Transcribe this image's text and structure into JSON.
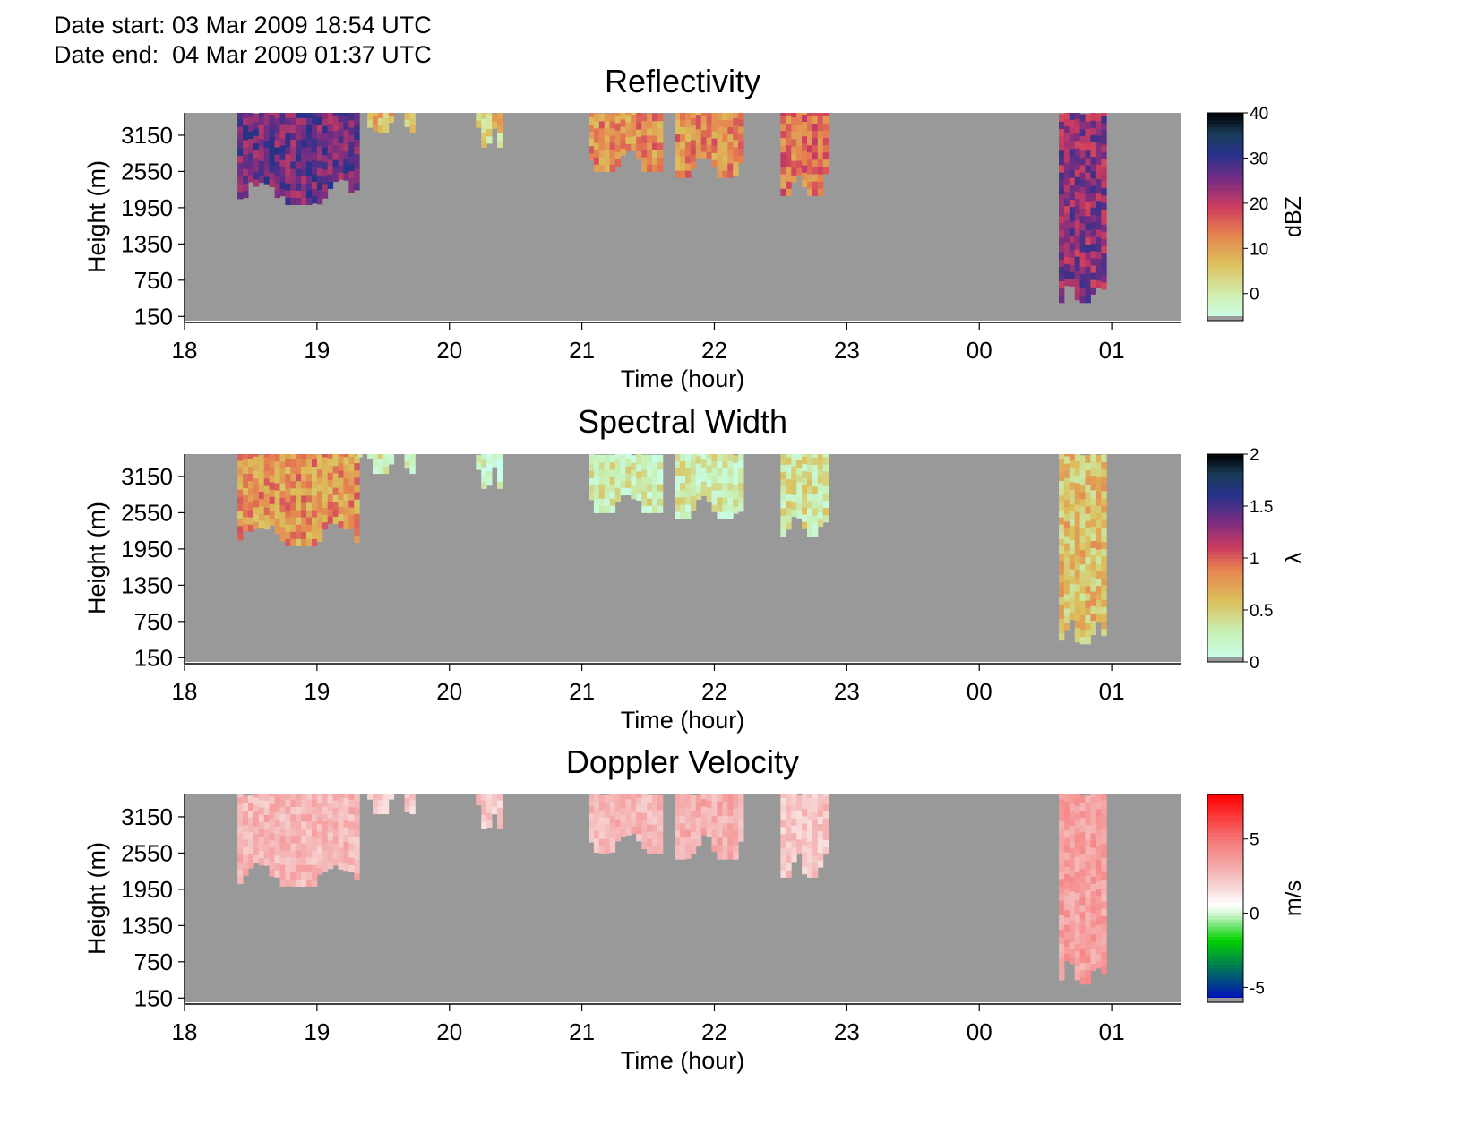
{
  "header": {
    "date_start": "Date start: 03 Mar 2009 18:54 UTC",
    "date_end": "Date end:  04 Mar 2009 01:37 UTC"
  },
  "colors": {
    "background": "#999999",
    "no_data": "#999999"
  },
  "chart_data": [
    {
      "type": "heatmap",
      "title": "Reflectivity",
      "xlabel": "Time (hour)",
      "ylabel": "Height (m)",
      "x_ticks": [
        "18",
        "19",
        "20",
        "21",
        "22",
        "23",
        "00",
        "01"
      ],
      "y_ticks": [
        "150",
        "750",
        "1350",
        "1950",
        "2550",
        "3150"
      ],
      "xlim_hours": [
        18.0,
        25.52
      ],
      "ylim_m": [
        80,
        3520
      ],
      "colorbar": {
        "label": "dBZ",
        "ticks": [
          "0",
          "10",
          "20",
          "30",
          "40"
        ],
        "range": [
          -6,
          40
        ],
        "colormap": "reflectivity"
      },
      "echo_regions": [
        {
          "t_start": 18.4,
          "t_end": 19.3,
          "z_bottom": 2000,
          "z_top": 3500,
          "intensity": 0.7
        },
        {
          "t_start": 19.3,
          "t_end": 19.7,
          "z_bottom": 3200,
          "z_top": 3500,
          "intensity": 0.3
        },
        {
          "t_start": 20.2,
          "t_end": 20.38,
          "z_bottom": 2950,
          "z_top": 3500,
          "intensity": 0.25
        },
        {
          "t_start": 21.05,
          "t_end": 21.6,
          "z_bottom": 2550,
          "z_top": 3500,
          "intensity": 0.4
        },
        {
          "t_start": 21.7,
          "t_end": 22.2,
          "z_bottom": 2450,
          "z_top": 3500,
          "intensity": 0.4
        },
        {
          "t_start": 22.5,
          "t_end": 22.85,
          "z_bottom": 2150,
          "z_top": 3500,
          "intensity": 0.45
        },
        {
          "t_start": 24.6,
          "t_end": 24.93,
          "z_bottom": 380,
          "z_top": 3500,
          "intensity": 0.65
        }
      ]
    },
    {
      "type": "heatmap",
      "title": "Spectral Width",
      "xlabel": "Time (hour)",
      "ylabel": "Height (m)",
      "x_ticks": [
        "18",
        "19",
        "20",
        "21",
        "22",
        "23",
        "00",
        "01"
      ],
      "y_ticks": [
        "150",
        "750",
        "1350",
        "1950",
        "2550",
        "3150"
      ],
      "xlim_hours": [
        18.0,
        25.52
      ],
      "ylim_m": [
        80,
        3520
      ],
      "colorbar": {
        "label": "λ",
        "ticks": [
          "0",
          "0.5",
          "1",
          "1.5",
          "2"
        ],
        "range": [
          0,
          2
        ],
        "colormap": "spectral_width"
      },
      "echo_regions": [
        {
          "t_start": 18.4,
          "t_end": 19.3,
          "z_bottom": 2000,
          "z_top": 3500,
          "intensity": 0.4
        },
        {
          "t_start": 19.3,
          "t_end": 19.7,
          "z_bottom": 3200,
          "z_top": 3500,
          "intensity": 0.15
        },
        {
          "t_start": 20.2,
          "t_end": 20.38,
          "z_bottom": 2950,
          "z_top": 3500,
          "intensity": 0.1
        },
        {
          "t_start": 21.05,
          "t_end": 21.6,
          "z_bottom": 2550,
          "z_top": 3500,
          "intensity": 0.15
        },
        {
          "t_start": 21.7,
          "t_end": 22.2,
          "z_bottom": 2450,
          "z_top": 3500,
          "intensity": 0.15
        },
        {
          "t_start": 22.5,
          "t_end": 22.85,
          "z_bottom": 2150,
          "z_top": 3500,
          "intensity": 0.18
        },
        {
          "t_start": 24.6,
          "t_end": 24.93,
          "z_bottom": 380,
          "z_top": 3500,
          "intensity": 0.3
        }
      ]
    },
    {
      "type": "heatmap",
      "title": "Doppler Velocity",
      "xlabel": "Time (hour)",
      "ylabel": "Height (m)",
      "x_ticks": [
        "18",
        "19",
        "20",
        "21",
        "22",
        "23",
        "00",
        "01"
      ],
      "y_ticks": [
        "150",
        "750",
        "1350",
        "1950",
        "2550",
        "3150"
      ],
      "xlim_hours": [
        18.0,
        25.52
      ],
      "ylim_m": [
        80,
        3520
      ],
      "colorbar": {
        "label": "m/s",
        "ticks": [
          "-5",
          "0",
          "5"
        ],
        "range": [
          -6,
          8
        ],
        "colormap": "doppler"
      },
      "echo_regions": [
        {
          "t_start": 18.4,
          "t_end": 19.3,
          "z_bottom": 2000,
          "z_top": 3500,
          "intensity": 0.3
        },
        {
          "t_start": 19.3,
          "t_end": 19.7,
          "z_bottom": 3200,
          "z_top": 3500,
          "intensity": 0.2
        },
        {
          "t_start": 20.2,
          "t_end": 20.38,
          "z_bottom": 2950,
          "z_top": 3500,
          "intensity": 0.2
        },
        {
          "t_start": 21.05,
          "t_end": 21.6,
          "z_bottom": 2550,
          "z_top": 3500,
          "intensity": 0.3
        },
        {
          "t_start": 21.7,
          "t_end": 22.2,
          "z_bottom": 2450,
          "z_top": 3500,
          "intensity": 0.35
        },
        {
          "t_start": 22.5,
          "t_end": 22.85,
          "z_bottom": 2150,
          "z_top": 3500,
          "intensity": 0.2
        },
        {
          "t_start": 24.6,
          "t_end": 24.93,
          "z_bottom": 380,
          "z_top": 3500,
          "intensity": 0.45
        }
      ]
    }
  ]
}
